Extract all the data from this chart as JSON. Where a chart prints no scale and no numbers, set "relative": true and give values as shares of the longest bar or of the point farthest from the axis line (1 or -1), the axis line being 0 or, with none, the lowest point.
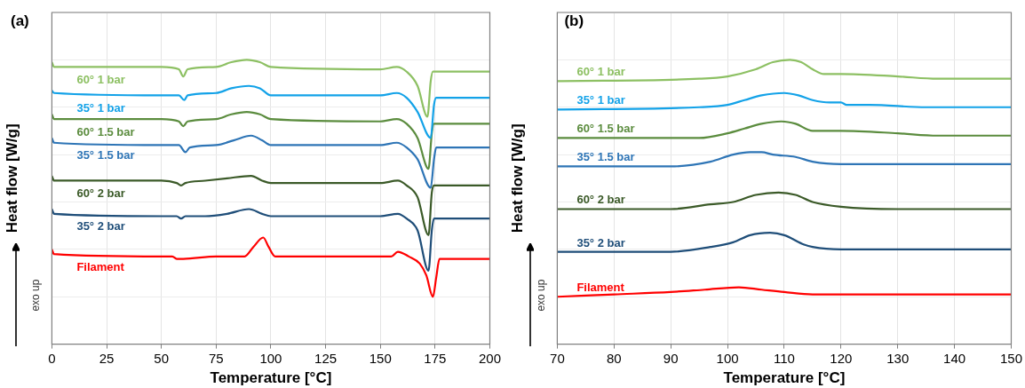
{
  "chart_data": [
    {
      "type": "line",
      "title": "(a)",
      "xlabel": "Temperature [°C]",
      "ylabel": "Heat flow [W/g]",
      "annotations": [
        "exo up"
      ],
      "relative": true,
      "xlim": [
        0,
        200
      ],
      "xticks": [
        0,
        25,
        50,
        75,
        100,
        125,
        150,
        175,
        200
      ],
      "grid": true,
      "marker": "none",
      "line_style": "solid",
      "series": [
        {
          "name": "60° 1 bar",
          "color": "#8dc063",
          "x": [
            0,
            1,
            50,
            58,
            60,
            62,
            75,
            82,
            89,
            95,
            100,
            150,
            157.5,
            162,
            167,
            171.5,
            173,
            174,
            200
          ],
          "values": [
            0.99,
            0.97,
            0.97,
            0.96,
            0.93,
            0.96,
            0.97,
            0.99,
            1.0,
            0.99,
            0.97,
            0.96,
            0.97,
            0.95,
            0.89,
            0.76,
            0.91,
            0.95,
            0.95
          ]
        },
        {
          "name": "35° 1 bar",
          "color": "#13a2e8",
          "x": [
            0,
            1,
            50,
            58,
            60.5,
            62,
            75,
            82,
            90,
            95,
            100,
            150,
            157.5,
            162,
            167,
            173,
            174.5,
            175.5,
            200
          ],
          "values": [
            0.87,
            0.86,
            0.85,
            0.85,
            0.83,
            0.85,
            0.86,
            0.88,
            0.89,
            0.88,
            0.85,
            0.85,
            0.86,
            0.84,
            0.78,
            0.67,
            0.81,
            0.84,
            0.84
          ]
        },
        {
          "name": "60° 1.5 bar",
          "color": "#5b8c3e",
          "x": [
            0,
            1,
            50,
            58,
            60,
            62,
            75,
            82,
            89,
            95,
            100,
            150,
            157.5,
            162,
            167,
            172,
            173.5,
            174.5,
            200
          ],
          "values": [
            0.77,
            0.75,
            0.75,
            0.74,
            0.72,
            0.74,
            0.75,
            0.77,
            0.78,
            0.77,
            0.75,
            0.74,
            0.75,
            0.73,
            0.67,
            0.54,
            0.69,
            0.73,
            0.73
          ]
        },
        {
          "name": "35° 1.5 bar",
          "color": "#2e75b6",
          "x": [
            0,
            1,
            50,
            58,
            61,
            63,
            75,
            83,
            91,
            96,
            100,
            150,
            157.5,
            162,
            167,
            173,
            174.5,
            175.5,
            200
          ],
          "values": [
            0.67,
            0.65,
            0.64,
            0.64,
            0.61,
            0.63,
            0.64,
            0.66,
            0.68,
            0.66,
            0.64,
            0.64,
            0.65,
            0.63,
            0.58,
            0.46,
            0.58,
            0.63,
            0.63
          ]
        },
        {
          "name": "60° 2 bar",
          "color": "#3b5a28",
          "x": [
            0,
            1,
            50,
            57,
            59,
            61,
            70,
            80,
            91,
            96,
            100,
            150,
            158,
            162,
            167,
            172,
            173.5,
            174.5,
            200
          ],
          "values": [
            0.51,
            0.49,
            0.49,
            0.48,
            0.47,
            0.48,
            0.49,
            0.5,
            0.51,
            0.49,
            0.48,
            0.48,
            0.49,
            0.47,
            0.42,
            0.26,
            0.44,
            0.47,
            0.47
          ]
        },
        {
          "name": "35° 2 bar",
          "color": "#1f4e79",
          "x": [
            0,
            1,
            50,
            57,
            59,
            61,
            70,
            80,
            90,
            96,
            100,
            150,
            158,
            162,
            167,
            172,
            173.5,
            174.5,
            200
          ],
          "values": [
            0.37,
            0.35,
            0.34,
            0.34,
            0.33,
            0.34,
            0.34,
            0.35,
            0.37,
            0.35,
            0.34,
            0.34,
            0.35,
            0.33,
            0.28,
            0.11,
            0.28,
            0.33,
            0.33
          ]
        },
        {
          "name": "Filament",
          "color": "#ff0000",
          "x": [
            0,
            1,
            50,
            55,
            57,
            60,
            75,
            88,
            92,
            96.5,
            99,
            102,
            150,
            155,
            158,
            163,
            168,
            171,
            174,
            175.5,
            177,
            200
          ],
          "values": [
            0.2,
            0.18,
            0.17,
            0.17,
            0.16,
            0.16,
            0.17,
            0.17,
            0.21,
            0.25,
            0.21,
            0.17,
            0.17,
            0.17,
            0.19,
            0.17,
            0.14,
            0.09,
            0,
            0.08,
            0.16,
            0.16
          ]
        }
      ]
    },
    {
      "type": "line",
      "title": "(b)",
      "xlabel": "Temperature [°C]",
      "ylabel": "Heat flow [W/g]",
      "annotations": [
        "exo up"
      ],
      "relative": true,
      "xlim": [
        70,
        150
      ],
      "xticks": [
        70,
        80,
        90,
        100,
        110,
        120,
        130,
        140,
        150
      ],
      "grid": true,
      "marker": "none",
      "line_style": "solid",
      "series": [
        {
          "name": "60° 1 bar",
          "color": "#8dc063",
          "x": [
            70,
            95,
            100,
            105,
            108,
            111,
            113,
            115,
            117,
            120,
            130,
            137,
            150
          ],
          "values": [
            0.91,
            0.92,
            0.93,
            0.96,
            0.99,
            1.0,
            0.99,
            0.96,
            0.94,
            0.94,
            0.93,
            0.92,
            0.92
          ]
        },
        {
          "name": "35° 1 bar",
          "color": "#13a2e8",
          "x": [
            70,
            95,
            100,
            103,
            106,
            110,
            112.5,
            115,
            118,
            120,
            121,
            125,
            135,
            150
          ],
          "values": [
            0.79,
            0.8,
            0.81,
            0.83,
            0.85,
            0.86,
            0.85,
            0.83,
            0.82,
            0.82,
            0.81,
            0.81,
            0.8,
            0.8
          ]
        },
        {
          "name": "60° 1.5 bar",
          "color": "#5b8c3e",
          "x": [
            70,
            95,
            100,
            103,
            106,
            109.5,
            112,
            115,
            120,
            130,
            137,
            150
          ],
          "values": [
            0.67,
            0.67,
            0.69,
            0.71,
            0.73,
            0.74,
            0.73,
            0.7,
            0.7,
            0.69,
            0.68,
            0.68
          ]
        },
        {
          "name": "35° 1.5 bar",
          "color": "#2e75b6",
          "x": [
            70,
            90,
            97,
            101,
            104,
            106,
            108,
            112,
            115,
            120,
            150
          ],
          "values": [
            0.55,
            0.55,
            0.57,
            0.6,
            0.61,
            0.61,
            0.6,
            0.59,
            0.57,
            0.56,
            0.56
          ]
        },
        {
          "name": "60° 2 bar",
          "color": "#3b5a28",
          "x": [
            70,
            90,
            97,
            101,
            105,
            109,
            112,
            115,
            120,
            130,
            150
          ],
          "values": [
            0.37,
            0.37,
            0.39,
            0.4,
            0.43,
            0.44,
            0.43,
            0.4,
            0.38,
            0.37,
            0.37
          ]
        },
        {
          "name": "35° 2 bar",
          "color": "#1f4e79",
          "x": [
            70,
            90,
            97,
            101,
            104,
            107.5,
            110,
            113.5,
            115,
            120,
            150
          ],
          "values": [
            0.19,
            0.19,
            0.21,
            0.23,
            0.26,
            0.27,
            0.26,
            0.22,
            0.21,
            0.2,
            0.2
          ]
        },
        {
          "name": "Filament",
          "color": "#ff0000",
          "x": [
            70,
            80,
            90,
            96,
            102,
            106,
            110,
            115,
            120,
            150
          ],
          "values": [
            0,
            0.01,
            0.02,
            0.03,
            0.04,
            0.03,
            0.02,
            0.01,
            0.01,
            0.01
          ]
        }
      ]
    }
  ]
}
